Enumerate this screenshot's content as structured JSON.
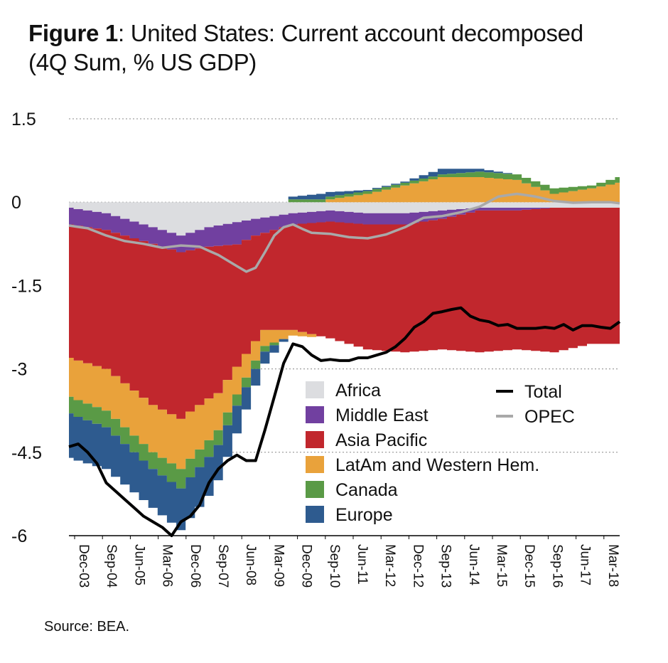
{
  "title_bold": "Figure 1",
  "title_rest": ": United States: Current account decomposed",
  "title_line2": "(4Q Sum, % US GDP)",
  "source": "Source: BEA.",
  "colors": {
    "africa": "#dcdde0",
    "middle_east": "#7140a0",
    "asia_pacific": "#c1272d",
    "latam": "#e9a23b",
    "canada": "#5a9a46",
    "europe": "#2e5b8f",
    "total": "#000000",
    "opec": "#a9a9a9",
    "grid": "#888888"
  },
  "chart_data": {
    "type": "area",
    "stacked": true,
    "ylim": [
      -6,
      1.5
    ],
    "yticks": [
      1.5,
      0,
      -1.5,
      -3,
      -4.5,
      -6
    ],
    "ytick_labels": [
      "1.5",
      "0",
      "-1.5",
      "-3",
      "-4.5",
      "-6"
    ],
    "xticks": [
      "Dec-03",
      "Sep-04",
      "Jun-05",
      "Mar-06",
      "Dec-06",
      "Sep-07",
      "Jun-08",
      "Mar-09",
      "Dec-09",
      "Sep-10",
      "Jun-11",
      "Mar-12",
      "Dec-12",
      "Sep-13",
      "Jun-14",
      "Mar-15",
      "Dec-15",
      "Sep-16",
      "Jun-17",
      "Mar-18"
    ],
    "quarters": 60,
    "series": [
      {
        "name": "Africa",
        "color_key": "africa",
        "points": [
          [
            0,
            -0.1
          ],
          [
            4,
            -0.2
          ],
          [
            9,
            -0.45
          ],
          [
            12,
            -0.6
          ],
          [
            15,
            -0.45
          ],
          [
            20,
            -0.3
          ],
          [
            24,
            -0.2
          ],
          [
            28,
            -0.15
          ],
          [
            32,
            -0.2
          ],
          [
            36,
            -0.2
          ],
          [
            40,
            -0.15
          ],
          [
            44,
            -0.1
          ],
          [
            48,
            -0.1
          ],
          [
            52,
            -0.1
          ],
          [
            56,
            -0.1
          ],
          [
            59,
            -0.1
          ]
        ]
      },
      {
        "name": "Middle East",
        "color_key": "middle_east",
        "points": [
          [
            0,
            -0.3
          ],
          [
            4,
            -0.3
          ],
          [
            9,
            -0.3
          ],
          [
            12,
            -0.3
          ],
          [
            15,
            -0.35
          ],
          [
            18,
            -0.4
          ],
          [
            20,
            -0.3
          ],
          [
            24,
            -0.2
          ],
          [
            28,
            -0.2
          ],
          [
            32,
            -0.2
          ],
          [
            36,
            -0.2
          ],
          [
            40,
            -0.15
          ],
          [
            44,
            -0.05
          ],
          [
            48,
            -0.05
          ],
          [
            52,
            0.0
          ],
          [
            56,
            0.0
          ],
          [
            59,
            0.0
          ]
        ]
      },
      {
        "name": "Asia Pacific",
        "color_key": "asia_pacific",
        "points": [
          [
            0,
            -2.4
          ],
          [
            4,
            -2.5
          ],
          [
            9,
            -2.9
          ],
          [
            12,
            -3.0
          ],
          [
            13,
            -2.9
          ],
          [
            16,
            -2.65
          ],
          [
            18,
            -2.2
          ],
          [
            21,
            -1.75
          ],
          [
            24,
            -1.9
          ],
          [
            28,
            -2.1
          ],
          [
            32,
            -2.25
          ],
          [
            36,
            -2.3
          ],
          [
            40,
            -2.35
          ],
          [
            44,
            -2.55
          ],
          [
            48,
            -2.5
          ],
          [
            52,
            -2.6
          ],
          [
            56,
            -2.45
          ],
          [
            59,
            -2.45
          ]
        ]
      },
      {
        "name": "LatAm and Western Hem.",
        "color_key": "latam",
        "points": [
          [
            0,
            -0.7
          ],
          [
            4,
            -0.75
          ],
          [
            9,
            -0.85
          ],
          [
            12,
            -0.9
          ],
          [
            15,
            -0.75
          ],
          [
            18,
            -0.5
          ],
          [
            20,
            -0.35
          ],
          [
            24,
            -0.1
          ],
          [
            26,
            -0.05
          ],
          [
            28,
            0.05
          ],
          [
            32,
            0.15
          ],
          [
            36,
            0.3
          ],
          [
            40,
            0.45
          ],
          [
            44,
            0.45
          ],
          [
            48,
            0.4
          ],
          [
            52,
            0.15
          ],
          [
            56,
            0.25
          ],
          [
            59,
            0.35
          ]
        ]
      },
      {
        "name": "Canada",
        "color_key": "canada",
        "points": [
          [
            0,
            -0.3
          ],
          [
            4,
            -0.3
          ],
          [
            9,
            -0.3
          ],
          [
            12,
            -0.35
          ],
          [
            15,
            -0.3
          ],
          [
            18,
            -0.2
          ],
          [
            20,
            -0.15
          ],
          [
            24,
            0.05
          ],
          [
            28,
            0.05
          ],
          [
            32,
            0.05
          ],
          [
            36,
            0.05
          ],
          [
            40,
            0.05
          ],
          [
            44,
            0.1
          ],
          [
            48,
            0.1
          ],
          [
            52,
            0.1
          ],
          [
            56,
            0.05
          ],
          [
            59,
            0.1
          ]
        ]
      },
      {
        "name": "Europe",
        "color_key": "europe",
        "points": [
          [
            0,
            -0.8
          ],
          [
            4,
            -0.75
          ],
          [
            9,
            -0.7
          ],
          [
            12,
            -0.75
          ],
          [
            15,
            -0.7
          ],
          [
            18,
            -0.5
          ],
          [
            20,
            -0.3
          ],
          [
            23,
            -0.05
          ],
          [
            24,
            0.05
          ],
          [
            27,
            0.1
          ],
          [
            30,
            0.05
          ],
          [
            32,
            0.02
          ],
          [
            36,
            0.02
          ],
          [
            40,
            0.1
          ],
          [
            44,
            0.05
          ],
          [
            48,
            0.0
          ],
          [
            52,
            0.0
          ],
          [
            56,
            0.0
          ],
          [
            59,
            0.0
          ]
        ]
      }
    ],
    "lines": [
      {
        "name": "Total",
        "color_key": "total",
        "points": [
          [
            0,
            -4.4
          ],
          [
            1,
            -4.35
          ],
          [
            2,
            -4.5
          ],
          [
            3,
            -4.7
          ],
          [
            4,
            -5.05
          ],
          [
            5,
            -5.2
          ],
          [
            6,
            -5.35
          ],
          [
            7,
            -5.5
          ],
          [
            8,
            -5.65
          ],
          [
            9,
            -5.75
          ],
          [
            10,
            -5.85
          ],
          [
            11,
            -6.0
          ],
          [
            12,
            -5.75
          ],
          [
            13,
            -5.65
          ],
          [
            14,
            -5.45
          ],
          [
            15,
            -5.05
          ],
          [
            16,
            -4.8
          ],
          [
            17,
            -4.65
          ],
          [
            18,
            -4.55
          ],
          [
            19,
            -4.65
          ],
          [
            20,
            -4.65
          ],
          [
            21,
            -4.1
          ],
          [
            22,
            -3.5
          ],
          [
            23,
            -2.9
          ],
          [
            24,
            -2.55
          ],
          [
            25,
            -2.6
          ],
          [
            26,
            -2.75
          ],
          [
            27,
            -2.85
          ],
          [
            28,
            -2.83
          ],
          [
            29,
            -2.85
          ],
          [
            30,
            -2.85
          ],
          [
            31,
            -2.8
          ],
          [
            32,
            -2.8
          ],
          [
            33,
            -2.75
          ],
          [
            34,
            -2.7
          ],
          [
            35,
            -2.6
          ],
          [
            36,
            -2.45
          ],
          [
            37,
            -2.25
          ],
          [
            38,
            -2.15
          ],
          [
            39,
            -2.0
          ],
          [
            40,
            -1.97
          ],
          [
            41,
            -1.93
          ],
          [
            42,
            -1.9
          ],
          [
            43,
            -2.05
          ],
          [
            44,
            -2.12
          ],
          [
            45,
            -2.15
          ],
          [
            46,
            -2.22
          ],
          [
            47,
            -2.2
          ],
          [
            48,
            -2.27
          ],
          [
            49,
            -2.27
          ],
          [
            50,
            -2.27
          ],
          [
            51,
            -2.25
          ],
          [
            52,
            -2.27
          ],
          [
            53,
            -2.2
          ],
          [
            54,
            -2.3
          ],
          [
            55,
            -2.22
          ],
          [
            56,
            -2.22
          ],
          [
            57,
            -2.25
          ],
          [
            58,
            -2.27
          ],
          [
            59,
            -2.15
          ]
        ]
      },
      {
        "name": "OPEC",
        "color_key": "opec",
        "points": [
          [
            0,
            -0.42
          ],
          [
            2,
            -0.47
          ],
          [
            4,
            -0.6
          ],
          [
            6,
            -0.7
          ],
          [
            8,
            -0.75
          ],
          [
            10,
            -0.82
          ],
          [
            12,
            -0.78
          ],
          [
            14,
            -0.8
          ],
          [
            16,
            -0.95
          ],
          [
            18,
            -1.15
          ],
          [
            19,
            -1.25
          ],
          [
            20,
            -1.18
          ],
          [
            21,
            -0.9
          ],
          [
            22,
            -0.6
          ],
          [
            23,
            -0.45
          ],
          [
            24,
            -0.4
          ],
          [
            25,
            -0.48
          ],
          [
            26,
            -0.55
          ],
          [
            28,
            -0.57
          ],
          [
            30,
            -0.63
          ],
          [
            32,
            -0.65
          ],
          [
            34,
            -0.58
          ],
          [
            36,
            -0.45
          ],
          [
            38,
            -0.28
          ],
          [
            40,
            -0.25
          ],
          [
            42,
            -0.18
          ],
          [
            44,
            -0.08
          ],
          [
            46,
            0.1
          ],
          [
            48,
            0.15
          ],
          [
            50,
            0.1
          ],
          [
            52,
            0.02
          ],
          [
            54,
            -0.01
          ],
          [
            56,
            0.0
          ],
          [
            58,
            0.0
          ],
          [
            59,
            -0.02
          ]
        ]
      }
    ],
    "legend": {
      "placement": "inside-bottom",
      "area_items": [
        "Africa",
        "Middle East",
        "Asia Pacific",
        "LatAm and Western Hem.",
        "Canada",
        "Europe"
      ],
      "line_items": [
        "Total",
        "OPEC"
      ]
    }
  }
}
